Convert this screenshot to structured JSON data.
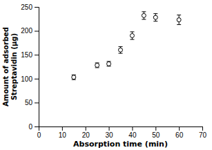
{
  "chart_data": {
    "type": "scatter",
    "x": [
      15,
      25,
      30,
      35,
      40,
      45,
      50,
      60
    ],
    "values": [
      103,
      128,
      131,
      160,
      190,
      232,
      228,
      223
    ],
    "yerr": [
      5,
      5,
      5,
      7,
      8,
      8,
      8,
      10
    ],
    "xlabel": "Absorption time (min)",
    "ylabel": "Amount of adsorbed\nStreptavidin (µg)",
    "xlim": [
      0,
      70
    ],
    "ylim": [
      0,
      250
    ],
    "xticks": [
      0,
      10,
      20,
      30,
      40,
      50,
      60,
      70
    ],
    "yticks": [
      0,
      50,
      100,
      150,
      200,
      250
    ],
    "marker": "open-circle",
    "color": "black"
  }
}
